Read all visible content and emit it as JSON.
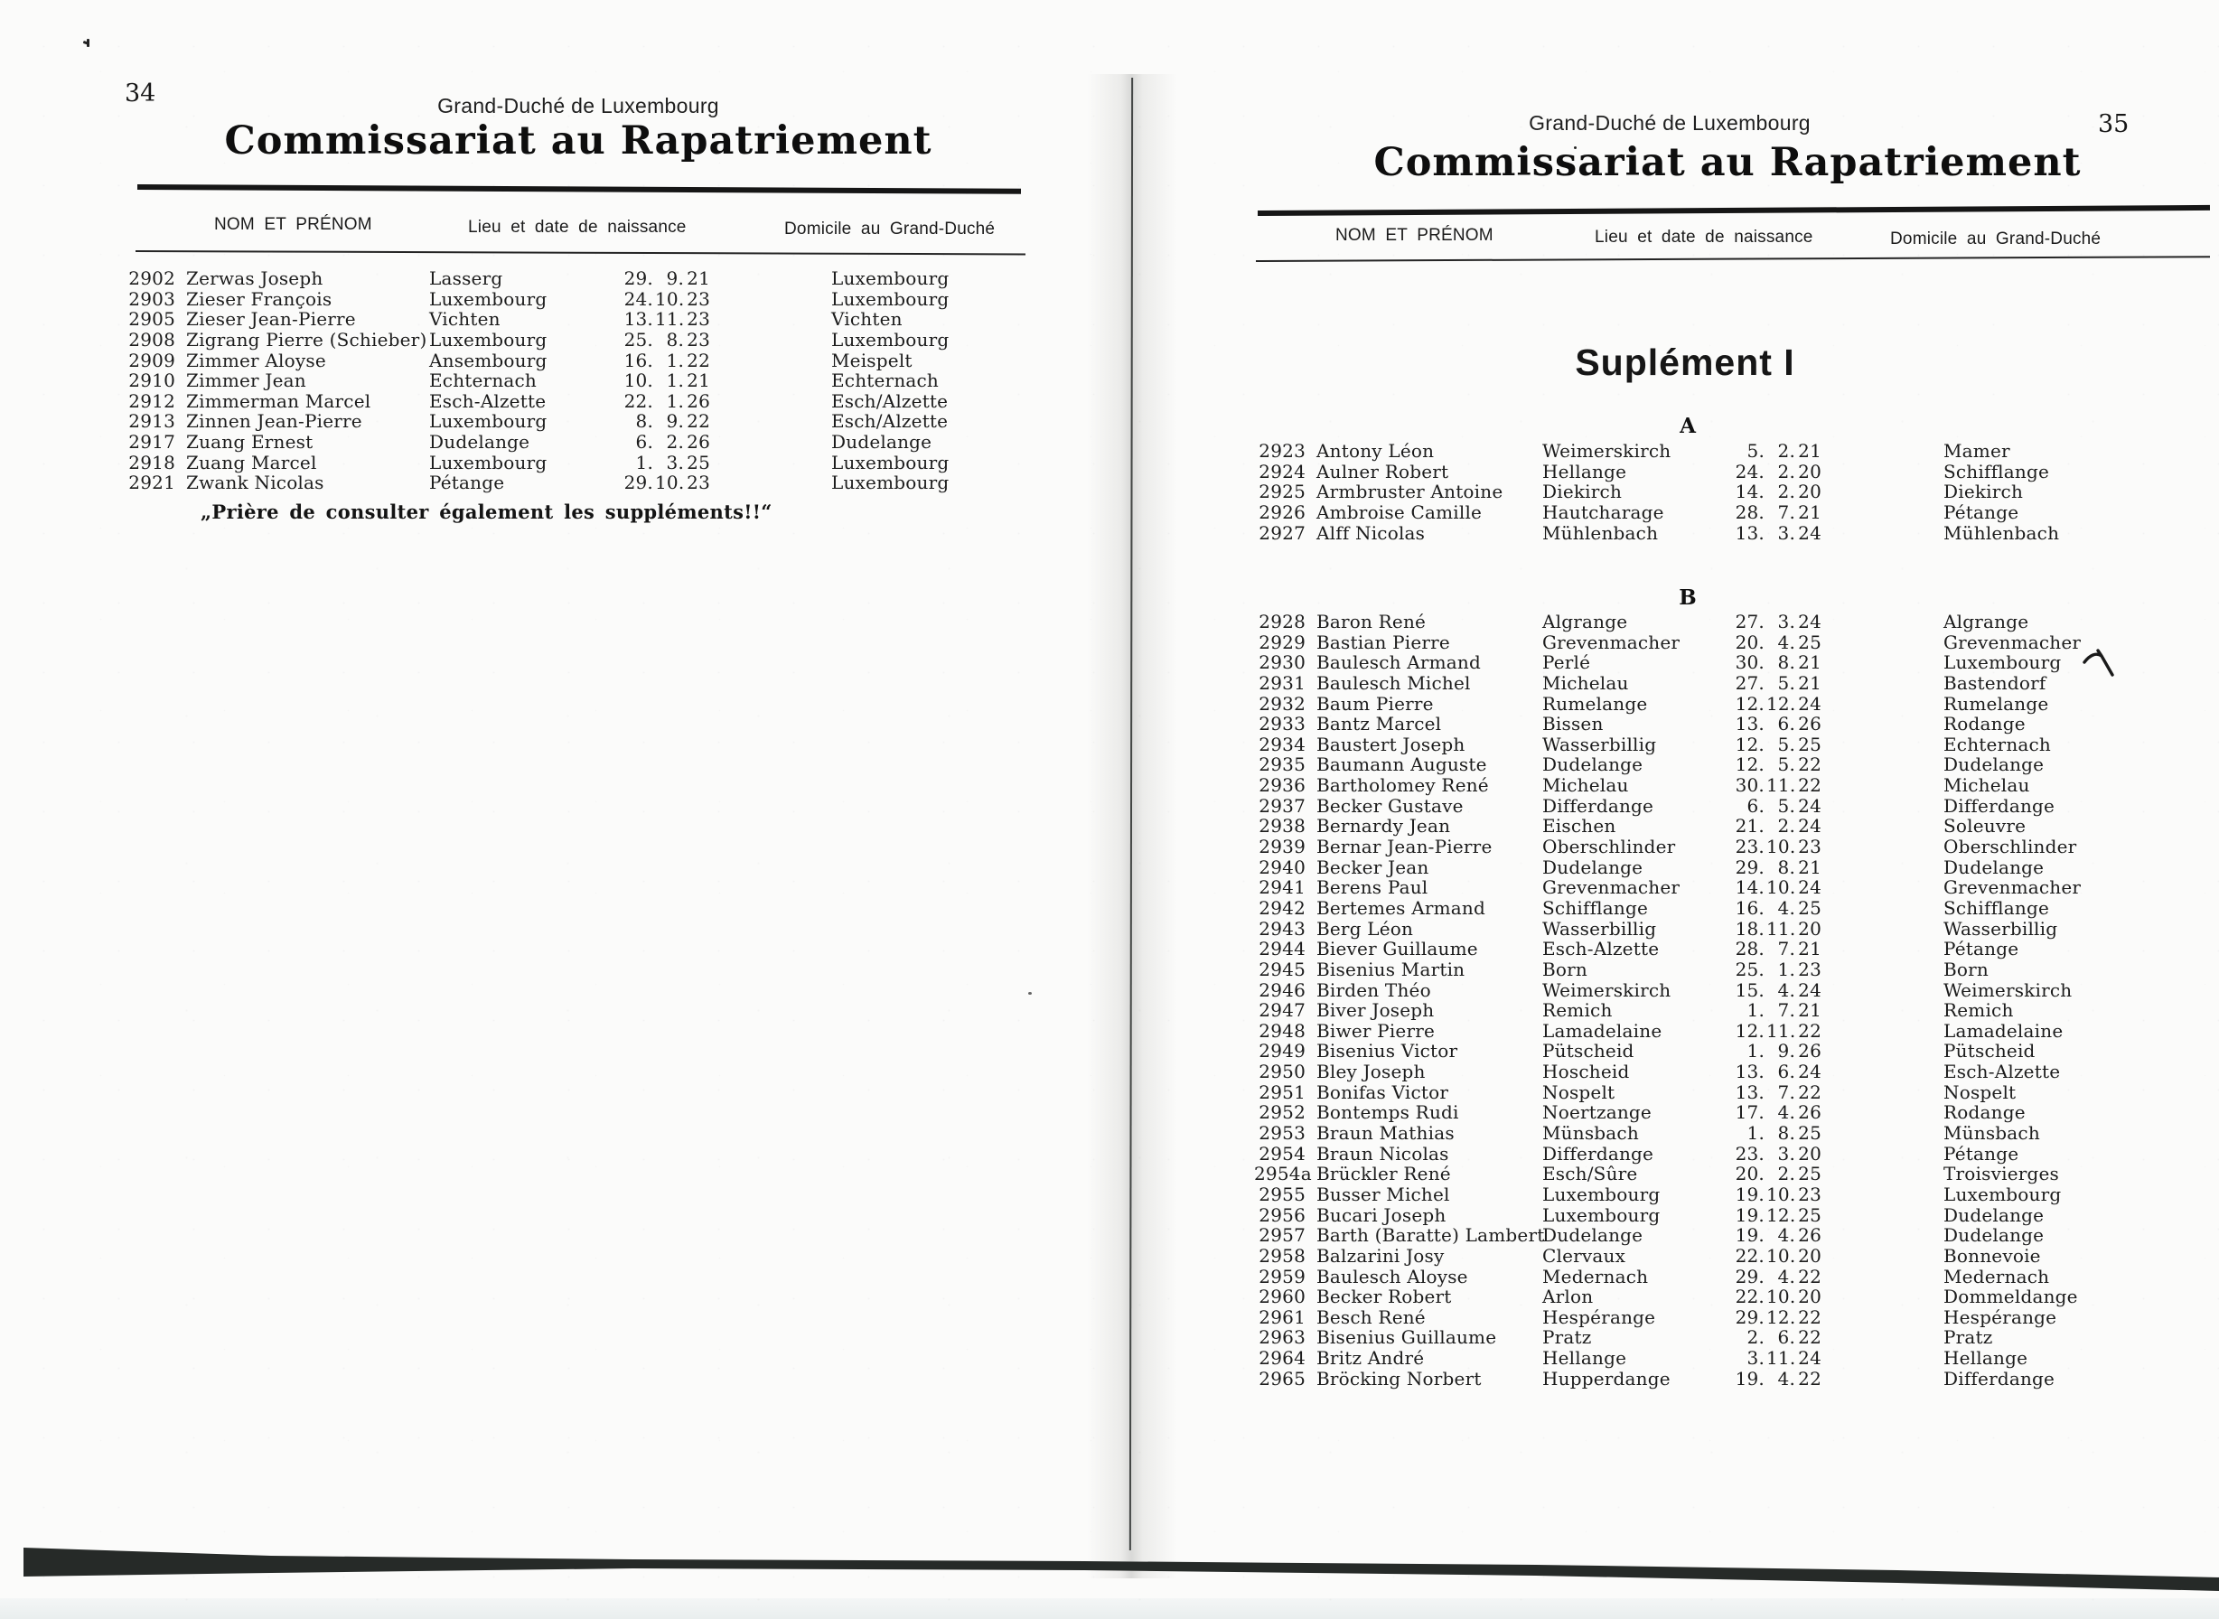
{
  "left_page": {
    "page_number": "34",
    "kicker": "Grand-Duché de Luxembourg",
    "title": "Commissariat au Rapatriement",
    "columns": {
      "name": "NOM ET PRÉNOM",
      "birth": "Lieu et date de naissance",
      "domicile": "Domicile au Grand-Duché"
    },
    "rows": [
      {
        "no": "2902",
        "name": "Zerwas Joseph",
        "birthplace": "Lasserg",
        "birthdate": "29. 9. 21",
        "domicile": "Luxembourg"
      },
      {
        "no": "2903",
        "name": "Zieser François",
        "birthplace": "Luxembourg",
        "birthdate": "24. 10. 23",
        "domicile": "Luxembourg"
      },
      {
        "no": "2905",
        "name": "Zieser Jean-Pierre",
        "birthplace": "Vichten",
        "birthdate": "13. 11. 23",
        "domicile": "Vichten"
      },
      {
        "no": "2908",
        "name": "Zigrang Pierre (Schieber)",
        "birthplace": "Luxembourg",
        "birthdate": "25. 8. 23",
        "domicile": "Luxembourg"
      },
      {
        "no": "2909",
        "name": "Zimmer Aloyse",
        "birthplace": "Ansembourg",
        "birthdate": "16. 1. 22",
        "domicile": "Meispelt"
      },
      {
        "no": "2910",
        "name": "Zimmer Jean",
        "birthplace": "Echternach",
        "birthdate": "10. 1. 21",
        "domicile": "Echternach"
      },
      {
        "no": "2912",
        "name": "Zimmerman Marcel",
        "birthplace": "Esch-Alzette",
        "birthdate": "22. 1. 26",
        "domicile": "Esch/Alzette"
      },
      {
        "no": "2913",
        "name": "Zinnen Jean-Pierre",
        "birthplace": "Luxembourg",
        "birthdate": "8. 9. 22",
        "domicile": "Esch/Alzette"
      },
      {
        "no": "2917",
        "name": "Zuang Ernest",
        "birthplace": "Dudelange",
        "birthdate": "6. 2. 26",
        "domicile": "Dudelange"
      },
      {
        "no": "2918",
        "name": "Zuang Marcel",
        "birthplace": "Luxembourg",
        "birthdate": "1. 3. 25",
        "domicile": "Luxembourg"
      },
      {
        "no": "2921",
        "name": "Zwank Nicolas",
        "birthplace": "Pétange",
        "birthdate": "29. 10. 23",
        "domicile": "Luxembourg"
      }
    ],
    "footnote": "„Prière de consulter également les suppléments!!“"
  },
  "right_page": {
    "page_number": "35",
    "kicker": "Grand-Duché de Luxembourg",
    "title": "Commissariat au Rapatriement",
    "columns": {
      "name": "NOM ET PRÉNOM",
      "birth": "Lieu et date de naissance",
      "domicile": "Domicile au Grand-Duché"
    },
    "supplement_heading": "Suplément I",
    "annotations": {
      "highlighted_row": "2930",
      "check_mark": "handwritten tick beside row 2930"
    },
    "sections": [
      {
        "letter": "A",
        "rows": [
          {
            "no": "2923",
            "name": "Antony Léon",
            "birthplace": "Weimerskirch",
            "birthdate": "5. 2. 21",
            "domicile": "Mamer"
          },
          {
            "no": "2924",
            "name": "Aulner Robert",
            "birthplace": "Hellange",
            "birthdate": "24. 2. 20",
            "domicile": "Schifflange"
          },
          {
            "no": "2925",
            "name": "Armbruster Antoine",
            "birthplace": "Diekirch",
            "birthdate": "14. 2. 20",
            "domicile": "Diekirch"
          },
          {
            "no": "2926",
            "name": "Ambroise Camille",
            "birthplace": "Hautcharage",
            "birthdate": "28. 7. 21",
            "domicile": "Pétange"
          },
          {
            "no": "2927",
            "name": "Alff Nicolas",
            "birthplace": "Mühlenbach",
            "birthdate": "13. 3. 24",
            "domicile": "Mühlenbach"
          }
        ]
      },
      {
        "letter": "B",
        "rows": [
          {
            "no": "2928",
            "name": "Baron René",
            "birthplace": "Algrange",
            "birthdate": "27. 3. 24",
            "domicile": "Algrange"
          },
          {
            "no": "2929",
            "name": "Bastian Pierre",
            "birthplace": "Grevenmacher",
            "birthdate": "20. 4. 25",
            "domicile": "Grevenmacher"
          },
          {
            "no": "2930",
            "name": "Baulesch Armand",
            "birthplace": "Perlé",
            "birthdate": "30. 8. 21",
            "domicile": "Luxembourg",
            "highlight": true
          },
          {
            "no": "2931",
            "name": "Baulesch Michel",
            "birthplace": "Michelau",
            "birthdate": "27. 5. 21",
            "domicile": "Bastendorf"
          },
          {
            "no": "2932",
            "name": "Baum Pierre",
            "birthplace": "Rumelange",
            "birthdate": "12. 12. 24",
            "domicile": "Rumelange"
          },
          {
            "no": "2933",
            "name": "Bantz Marcel",
            "birthplace": "Bissen",
            "birthdate": "13. 6. 26",
            "domicile": "Rodange"
          },
          {
            "no": "2934",
            "name": "Baustert Joseph",
            "birthplace": "Wasserbillig",
            "birthdate": "12. 5. 25",
            "domicile": "Echternach"
          },
          {
            "no": "2935",
            "name": "Baumann Auguste",
            "birthplace": "Dudelange",
            "birthdate": "12. 5. 22",
            "domicile": "Dudelange"
          },
          {
            "no": "2936",
            "name": "Bartholomey René",
            "birthplace": "Michelau",
            "birthdate": "30. 11. 22",
            "domicile": "Michelau"
          },
          {
            "no": "2937",
            "name": "Becker Gustave",
            "birthplace": "Differdange",
            "birthdate": "6. 5. 24",
            "domicile": "Differdange"
          },
          {
            "no": "2938",
            "name": "Bernardy Jean",
            "birthplace": "Eischen",
            "birthdate": "21. 2. 24",
            "domicile": "Soleuvre"
          },
          {
            "no": "2939",
            "name": "Bernar Jean-Pierre",
            "birthplace": "Oberschlinder",
            "birthdate": "23. 10. 23",
            "domicile": "Oberschlinder"
          },
          {
            "no": "2940",
            "name": "Becker Jean",
            "birthplace": "Dudelange",
            "birthdate": "29. 8. 21",
            "domicile": "Dudelange"
          },
          {
            "no": "2941",
            "name": "Berens Paul",
            "birthplace": "Grevenmacher",
            "birthdate": "14. 10. 24",
            "domicile": "Grevenmacher"
          },
          {
            "no": "2942",
            "name": "Bertemes Armand",
            "birthplace": "Schifflange",
            "birthdate": "16. 4. 25",
            "domicile": "Schifflange"
          },
          {
            "no": "2943",
            "name": "Berg Léon",
            "birthplace": "Wasserbillig",
            "birthdate": "18. 11. 20",
            "domicile": "Wasserbillig"
          },
          {
            "no": "2944",
            "name": "Biever Guillaume",
            "birthplace": "Esch-Alzette",
            "birthdate": "28. 7. 21",
            "domicile": "Pétange"
          },
          {
            "no": "2945",
            "name": "Bisenius Martin",
            "birthplace": "Born",
            "birthdate": "25. 1. 23",
            "domicile": "Born"
          },
          {
            "no": "2946",
            "name": "Birden Théo",
            "birthplace": "Weimerskirch",
            "birthdate": "15. 4. 24",
            "domicile": "Weimerskirch"
          },
          {
            "no": "2947",
            "name": "Biver Joseph",
            "birthplace": "Remich",
            "birthdate": "1. 7. 21",
            "domicile": "Remich"
          },
          {
            "no": "2948",
            "name": "Biwer Pierre",
            "birthplace": "Lamadelaine",
            "birthdate": "12. 11. 22",
            "domicile": "Lamadelaine"
          },
          {
            "no": "2949",
            "name": "Bisenius Victor",
            "birthplace": "Pütscheid",
            "birthdate": "1. 9. 26",
            "domicile": "Pütscheid"
          },
          {
            "no": "2950",
            "name": "Bley Joseph",
            "birthplace": "Hoscheid",
            "birthdate": "13. 6. 24",
            "domicile": "Esch-Alzette"
          },
          {
            "no": "2951",
            "name": "Bonifas Victor",
            "birthplace": "Nospelt",
            "birthdate": "13. 7. 22",
            "domicile": "Nospelt"
          },
          {
            "no": "2952",
            "name": "Bontemps Rudi",
            "birthplace": "Noertzange",
            "birthdate": "17. 4. 26",
            "domicile": "Rodange"
          },
          {
            "no": "2953",
            "name": "Braun Mathias",
            "birthplace": "Münsbach",
            "birthdate": "1. 8. 25",
            "domicile": "Münsbach"
          },
          {
            "no": "2954",
            "name": "Braun Nicolas",
            "birthplace": "Differdange",
            "birthdate": "23. 3. 20",
            "domicile": "Pétange"
          },
          {
            "no": "2954a",
            "name": "Brückler René",
            "birthplace": "Esch/Sûre",
            "birthdate": "20. 2. 25",
            "domicile": "Troisvierges"
          },
          {
            "no": "2955",
            "name": "Busser Michel",
            "birthplace": "Luxembourg",
            "birthdate": "19. 10. 23",
            "domicile": "Luxembourg"
          },
          {
            "no": "2956",
            "name": "Bucari Joseph",
            "birthplace": "Luxembourg",
            "birthdate": "19. 12. 25",
            "domicile": "Dudelange"
          },
          {
            "no": "2957",
            "name": "Barth (Baratte) Lambert",
            "birthplace": "Dudelange",
            "birthdate": "19. 4. 26",
            "domicile": "Dudelange"
          },
          {
            "no": "2958",
            "name": "Balzarini Josy",
            "birthplace": "Clervaux",
            "birthdate": "22. 10. 20",
            "domicile": "Bonnevoie"
          },
          {
            "no": "2959",
            "name": "Baulesch Aloyse",
            "birthplace": "Medernach",
            "birthdate": "29. 4. 22",
            "domicile": "Medernach"
          },
          {
            "no": "2960",
            "name": "Becker Robert",
            "birthplace": "Arlon",
            "birthdate": "22. 10. 20",
            "domicile": "Dommeldange"
          },
          {
            "no": "2961",
            "name": "Besch René",
            "birthplace": "Hespérange",
            "birthdate": "29. 12. 22",
            "domicile": "Hespérange"
          },
          {
            "no": "2963",
            "name": "Bisenius Guillaume",
            "birthplace": "Pratz",
            "birthdate": "2. 6. 22",
            "domicile": "Pratz"
          },
          {
            "no": "2964",
            "name": "Britz André",
            "birthplace": "Hellange",
            "birthdate": "3. 11. 24",
            "domicile": "Hellange"
          },
          {
            "no": "2965",
            "name": "Bröcking Norbert",
            "birthplace": "Hupperdange",
            "birthdate": "19. 4. 22",
            "domicile": "Differdange"
          }
        ]
      }
    ]
  }
}
